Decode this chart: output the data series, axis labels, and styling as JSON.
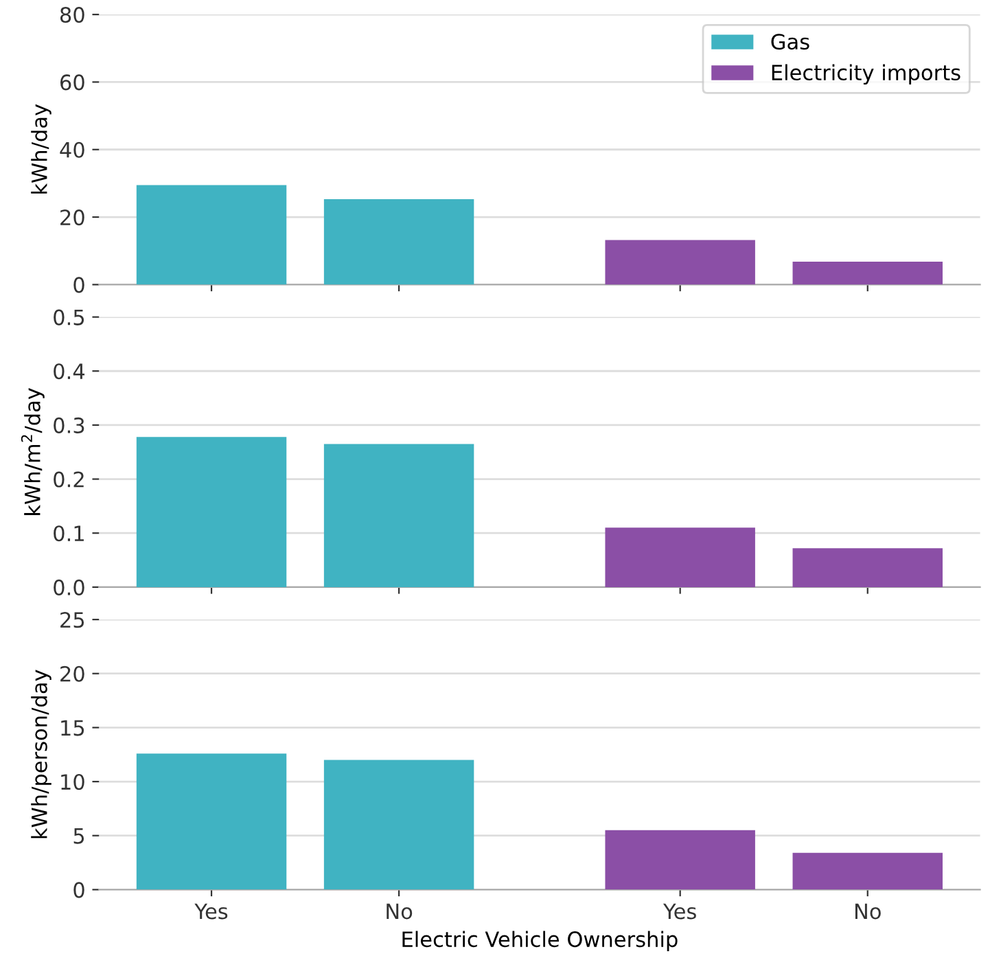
{
  "chart_data": [
    {
      "type": "bar",
      "categories": [
        null,
        null,
        null,
        null
      ],
      "ylabel": "kWh/day",
      "ylim": [
        0,
        80
      ],
      "yticks": [
        0,
        20,
        40,
        60,
        80
      ],
      "grid": "y",
      "legend": "top right",
      "tick_labels": "y",
      "series": [
        {
          "name": "Gas",
          "color": "#40b3c2",
          "values": [
            29.5,
            25.3,
            null,
            null
          ]
        },
        {
          "name": "Electricity imports",
          "color": "#8b4fa6",
          "values": [
            null,
            null,
            13.2,
            6.8
          ]
        }
      ]
    },
    {
      "type": "bar",
      "categories": [
        null,
        null,
        null,
        null
      ],
      "ylabel": "kWh/m$^{2}$/day",
      "ylim": [
        0,
        0.5
      ],
      "yticks": [
        {
          "value": 0,
          "label": "0.0"
        },
        0.1,
        0.2,
        0.3,
        0.4,
        0.5
      ],
      "grid": "y",
      "tick_labels": "y",
      "series": [
        {
          "color": "#40b3c2",
          "values": [
            0.278,
            0.265,
            null,
            null
          ]
        },
        {
          "color": "#8b4fa6",
          "values": [
            null,
            null,
            0.11,
            0.072
          ]
        }
      ]
    },
    {
      "type": "bar",
      "categories": [
        "Yes",
        "No",
        "Yes",
        "No"
      ],
      "xlabel": "Electric Vehicle Ownership",
      "ylabel": "kWh/person/day",
      "ylim": [
        0,
        25
      ],
      "yticks": [
        0,
        5,
        10,
        15,
        20,
        25
      ],
      "grid": "y",
      "series": [
        {
          "color": "#40b3c2",
          "values": [
            12.6,
            12.0,
            null,
            null
          ]
        },
        {
          "color": "#8b4fa6",
          "values": [
            null,
            null,
            5.5,
            3.4
          ]
        }
      ]
    }
  ]
}
